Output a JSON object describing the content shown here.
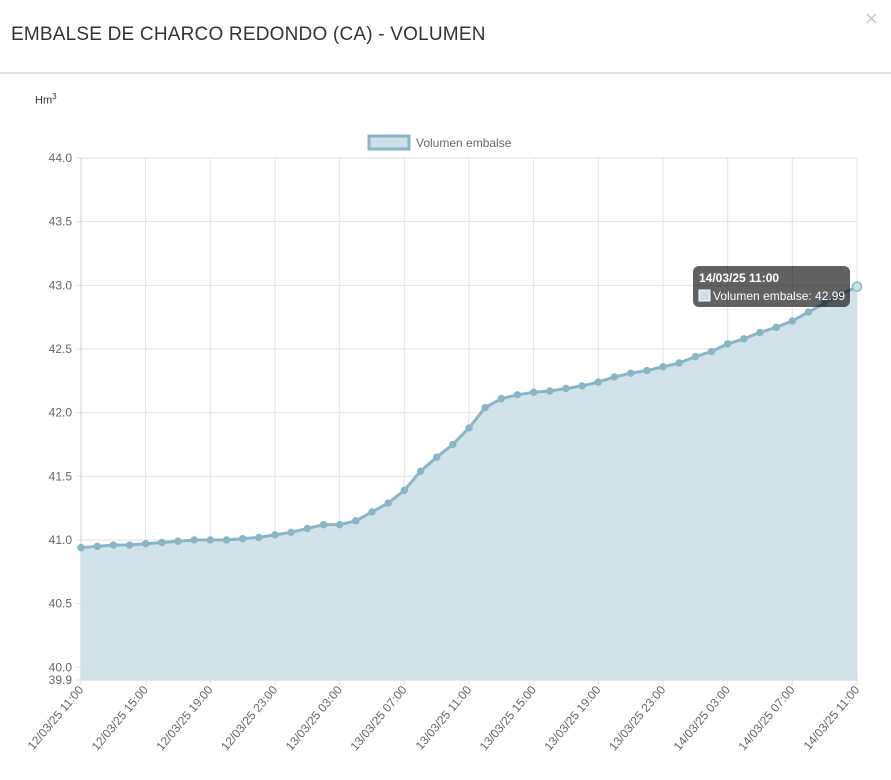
{
  "modal": {
    "title": "EMBALSE DE CHARCO REDONDO (CA) - VOLUMEN",
    "close_symbol": "×"
  },
  "chart_data": {
    "type": "area",
    "unit_label": "Hm",
    "unit_exponent": "3",
    "series": [
      {
        "name": "Volumen embalse",
        "color": "#8ab4c8",
        "fill": "#cfe1e8",
        "values": [
          40.94,
          40.95,
          40.96,
          40.96,
          40.97,
          40.98,
          40.99,
          41.0,
          41.0,
          41.0,
          41.01,
          41.02,
          41.04,
          41.06,
          41.09,
          41.12,
          41.12,
          41.15,
          41.22,
          41.29,
          41.39,
          41.54,
          41.65,
          41.75,
          41.88,
          42.04,
          42.11,
          42.14,
          42.16,
          42.17,
          42.19,
          42.21,
          42.24,
          42.28,
          42.31,
          42.33,
          42.36,
          42.39,
          42.44,
          42.48,
          42.54,
          42.58,
          42.63,
          42.67,
          42.72,
          42.79,
          42.86,
          42.93,
          42.99
        ]
      }
    ],
    "x_tick_labels": [
      "12/03/25 11:00",
      "12/03/25 15:00",
      "12/03/25 19:00",
      "12/03/25 23:00",
      "13/03/25 03:00",
      "13/03/25 07:00",
      "13/03/25 11:00",
      "13/03/25 15:00",
      "13/03/25 19:00",
      "13/03/25 23:00",
      "14/03/25 03:00",
      "14/03/25 07:00",
      "14/03/25 11:00"
    ],
    "y_ticks": [
      "39.9",
      "40.0",
      "40.5",
      "41.0",
      "41.5",
      "42.0",
      "42.5",
      "43.0",
      "43.5",
      "44.0"
    ],
    "ylim": [
      39.9,
      44.0
    ],
    "grid": true,
    "legend_position": "top",
    "tooltip": {
      "title": "14/03/25 11:00",
      "label": "Volumen embalse: 42.99"
    }
  }
}
